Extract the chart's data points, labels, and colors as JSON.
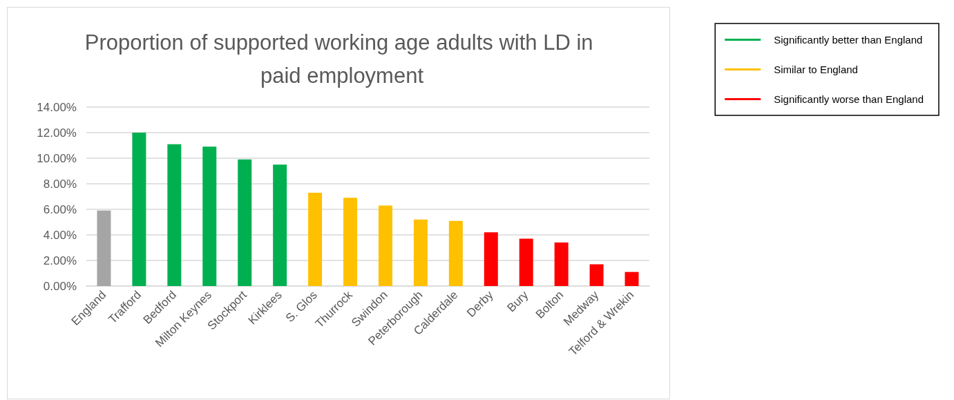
{
  "chart_data": {
    "type": "bar",
    "title": "Proportion of supported working age adults with LD in paid employment",
    "categories": [
      "England",
      "Trafford",
      "Bedford",
      "Milton Keynes",
      "Stockport",
      "Kirklees",
      "S. Glos",
      "Thurrock",
      "Swindon",
      "Peterborough",
      "Calderdale",
      "Derby",
      "Bury",
      "Bolton",
      "Medway",
      "Telford & Wrekin"
    ],
    "series": [
      {
        "color": "#a5a5a5",
        "values": [
          5.9,
          null,
          null,
          null,
          null,
          null,
          null,
          null,
          null,
          null,
          null,
          null,
          null,
          null,
          null,
          null
        ]
      },
      {
        "name": "Significantly better than England",
        "color": "#00b050",
        "values": [
          null,
          12.0,
          11.1,
          10.9,
          9.9,
          9.5,
          null,
          null,
          null,
          null,
          null,
          null,
          null,
          null,
          null,
          null
        ]
      },
      {
        "name": "Similar to England",
        "color": "#ffc000",
        "values": [
          null,
          null,
          null,
          null,
          null,
          null,
          7.3,
          6.9,
          6.3,
          5.2,
          5.1,
          null,
          null,
          null,
          null,
          null
        ]
      },
      {
        "name": "Significantly worse than England",
        "color": "#ff0000",
        "values": [
          null,
          null,
          null,
          null,
          null,
          null,
          null,
          null,
          null,
          null,
          null,
          4.2,
          3.7,
          3.4,
          1.7,
          1.1
        ]
      }
    ],
    "stacked": true,
    "ylim": [
      0,
      14
    ],
    "yticks": [
      {
        "value": 0,
        "label": "0.00%"
      },
      {
        "value": 2,
        "label": "2.00%"
      },
      {
        "value": 4,
        "label": "4.00%"
      },
      {
        "value": 6,
        "label": "6.00%"
      },
      {
        "value": 8,
        "label": "8.00%"
      },
      {
        "value": 10,
        "label": "10.00%"
      },
      {
        "value": 12,
        "label": "12.00%"
      },
      {
        "value": 14,
        "label": "14.00%"
      }
    ],
    "grid": "y",
    "legend": "top right"
  }
}
